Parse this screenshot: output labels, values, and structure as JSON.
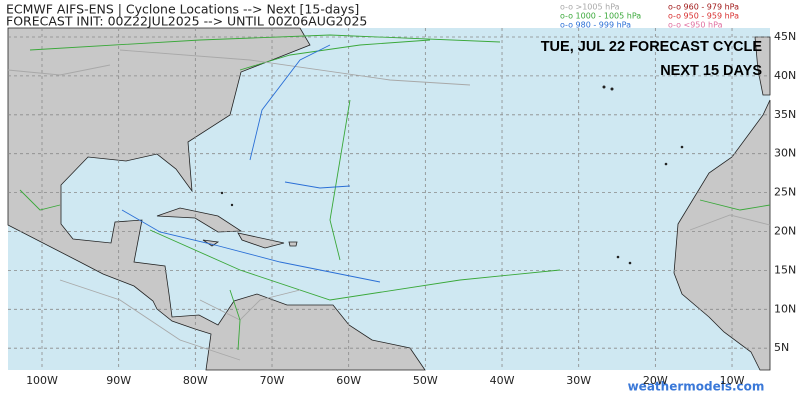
{
  "header": {
    "title": "ECMWF AIFS-ENS | Cyclone Locations --> Next [15-days]",
    "subtitle": "FORECAST INIT: 00Z22JUL2025 --> UNTIL 00Z06AUG2025"
  },
  "legend": [
    {
      "label": "o-o >1005 hPa",
      "color": "#a8a8a8"
    },
    {
      "label": "o-o 1000 - 1005 hPa",
      "color": "#3aa83a"
    },
    {
      "label": "o-o 980 - 999 hPa",
      "color": "#2a6fd6"
    },
    {
      "label": "o-o 960 - 979 hPa",
      "color": "#a01818"
    },
    {
      "label": "o-o 950 - 959 hPa",
      "color": "#d83030"
    },
    {
      "label": "o-o <950 hPa",
      "color": "#e070a0"
    }
  ],
  "overlay": {
    "line1": "TUE, JUL 22 FORECAST CYCLE",
    "line2": "NEXT 15 DAYS"
  },
  "map": {
    "lon_labels": [
      "100W",
      "90W",
      "80W",
      "70W",
      "60W",
      "50W",
      "40W",
      "30W",
      "20W",
      "10W"
    ],
    "lat_labels": [
      "45N",
      "40N",
      "35N",
      "30N",
      "25N",
      "20N",
      "15N",
      "10N",
      "5N"
    ]
  },
  "watermark": "weathermodels.com"
}
